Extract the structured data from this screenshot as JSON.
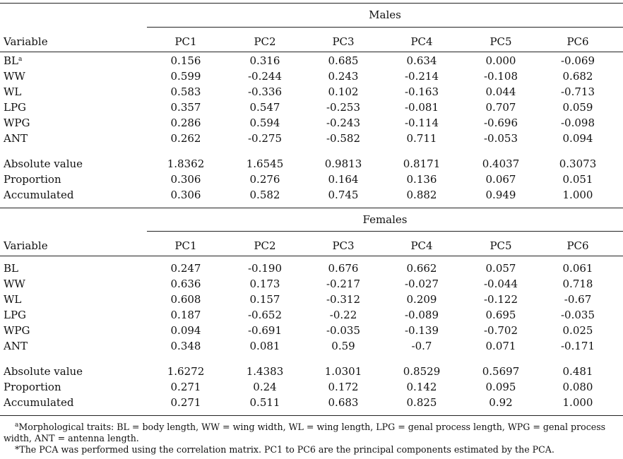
{
  "tables": [
    {
      "group": "Males",
      "variable_header": "Variable",
      "columns": [
        "PC1",
        "PC2",
        "PC3",
        "PC4",
        "PC5",
        "PC6"
      ],
      "rows": [
        {
          "label": "BL",
          "sup": "a",
          "values": [
            "0.156",
            "0.316",
            "0.685",
            "0.634",
            "0.000",
            "-0.069"
          ]
        },
        {
          "label": "WW",
          "values": [
            "0.599",
            "-0.244",
            "0.243",
            "-0.214",
            "-0.108",
            "0.682"
          ]
        },
        {
          "label": "WL",
          "values": [
            "0.583",
            "-0.336",
            "0.102",
            "-0.163",
            "0.044",
            "-0.713"
          ]
        },
        {
          "label": "LPG",
          "values": [
            "0.357",
            "0.547",
            "-0.253",
            "-0.081",
            "0.707",
            "0.059"
          ]
        },
        {
          "label": "WPG",
          "values": [
            "0.286",
            "0.594",
            "-0.243",
            "-0.114",
            "-0.696",
            "-0.098"
          ]
        },
        {
          "label": "ANT",
          "values": [
            "0.262",
            "-0.275",
            "-0.582",
            "0.711",
            "-0.053",
            "0.094"
          ]
        }
      ],
      "summary": [
        {
          "label": "Absolute value",
          "values": [
            "1.8362",
            "1.6545",
            "0.9813",
            "0.8171",
            "0.4037",
            "0.3073"
          ]
        },
        {
          "label": "Proportion",
          "values": [
            "0.306",
            "0.276",
            "0.164",
            "0.136",
            "0.067",
            "0.051"
          ]
        },
        {
          "label": "Accumulated",
          "values": [
            "0.306",
            "0.582",
            "0.745",
            "0.882",
            "0.949",
            "1.000"
          ]
        }
      ]
    },
    {
      "group": "Females",
      "variable_header": "Variable",
      "columns": [
        "PC1",
        "PC2",
        "PC3",
        "PC4",
        "PC5",
        "PC6"
      ],
      "rows": [
        {
          "label": "BL",
          "values": [
            "0.247",
            "-0.190",
            "0.676",
            "0.662",
            "0.057",
            "0.061"
          ]
        },
        {
          "label": "WW",
          "values": [
            "0.636",
            "0.173",
            "-0.217",
            "-0.027",
            "-0.044",
            "0.718"
          ]
        },
        {
          "label": "WL",
          "values": [
            "0.608",
            "0.157",
            "-0.312",
            "0.209",
            "-0.122",
            "-0.67"
          ]
        },
        {
          "label": "LPG",
          "values": [
            "0.187",
            "-0.652",
            "-0.22",
            "-0.089",
            "0.695",
            "-0.035"
          ]
        },
        {
          "label": "WPG",
          "values": [
            "0.094",
            "-0.691",
            "-0.035",
            "-0.139",
            "-0.702",
            "0.025"
          ]
        },
        {
          "label": "ANT",
          "values": [
            "0.348",
            "0.081",
            "0.59",
            "-0.7",
            "0.071",
            "-0.171"
          ]
        }
      ],
      "summary": [
        {
          "label": "Absolute value",
          "values": [
            "1.6272",
            "1.4383",
            "1.0301",
            "0.8529",
            "0.5697",
            "0.481"
          ]
        },
        {
          "label": "Proportion",
          "values": [
            "0.271",
            "0.24",
            "0.172",
            "0.142",
            "0.095",
            "0.080"
          ]
        },
        {
          "label": "Accumulated",
          "values": [
            "0.271",
            "0.511",
            "0.683",
            "0.825",
            "0.92",
            "1.000"
          ]
        }
      ]
    }
  ],
  "footnotes": [
    {
      "sup": "a",
      "text": "Morphological traits: BL = body length, WW = wing width, WL = wing length, LPG = genal process length, WPG = genal process width, ANT = antenna length."
    },
    {
      "sup": "",
      "text": "*The PCA was performed using the correlation matrix. PC1 to PC6 are the principal components estimated by the PCA."
    }
  ]
}
